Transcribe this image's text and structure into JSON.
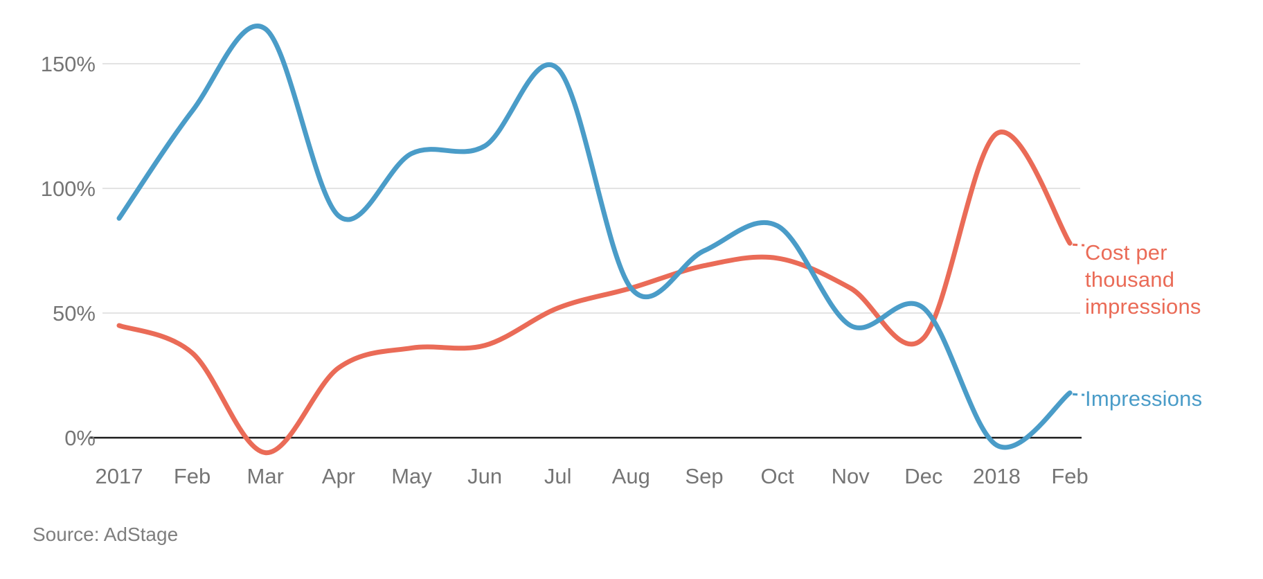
{
  "chart_data": {
    "type": "line",
    "title": "",
    "x_labels": [
      "2017",
      "Feb",
      "Mar",
      "Apr",
      "May",
      "Jun",
      "Jul",
      "Aug",
      "Sep",
      "Oct",
      "Nov",
      "Dec",
      "2018",
      "Feb"
    ],
    "y_tick_labels": [
      "150%",
      "100%",
      "50%",
      "0%"
    ],
    "y_tick_values": [
      150,
      100,
      50,
      0
    ],
    "ylim": [
      -10,
      170
    ],
    "grid": "horizontal-lines-at-50-100-150",
    "legend_position": "right-of-line-ends",
    "series": [
      {
        "name": "Impressions",
        "color": "#4A9CC8",
        "values": [
          88,
          131,
          164,
          89,
          114,
          117,
          148,
          60,
          75,
          85,
          45,
          52,
          -3,
          18
        ]
      },
      {
        "name": "Cost per thousand impressions",
        "color": "#EA6B57",
        "values": [
          45,
          34,
          -6,
          28,
          36,
          37,
          52,
          60,
          69,
          72,
          60,
          40,
          122,
          78
        ]
      }
    ],
    "source": "Source: AdStage"
  },
  "colors": {
    "axis_line": "#1b1b1b",
    "gridline": "#e3e3e3",
    "tick_label": "#757575",
    "source_text": "#7e7e7e",
    "background": "#ffffff"
  }
}
